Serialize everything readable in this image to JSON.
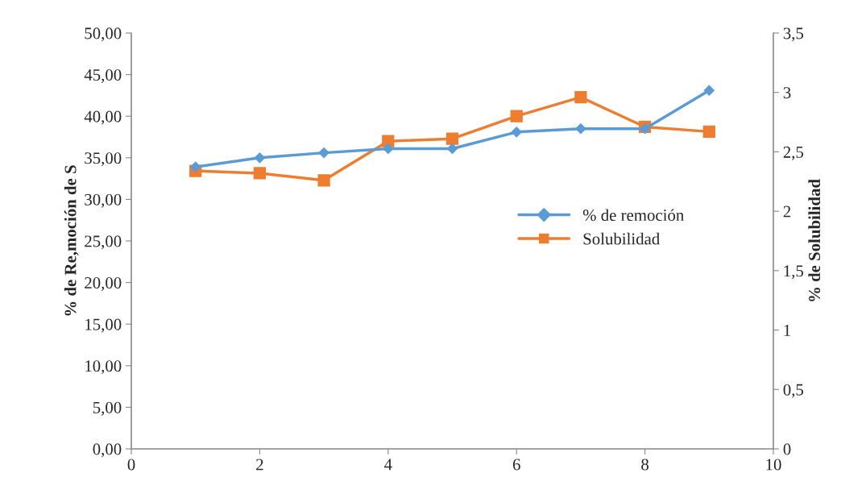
{
  "chart_data": {
    "type": "line",
    "ylabel": "% de Re,moción de S",
    "y2label": "% de Solubilidad",
    "x": [
      1,
      2,
      3,
      4,
      5,
      6,
      7,
      8,
      9
    ],
    "series": [
      {
        "name": "% de remoción",
        "color": "#5b9bd5",
        "marker": "diamond",
        "values": [
          33.9,
          35.0,
          35.6,
          36.1,
          36.1,
          38.1,
          38.5,
          38.5,
          43.1
        ]
      },
      {
        "name": "Solubilidad",
        "color": "#ed7d31",
        "marker": "square",
        "axis": "y2",
        "values": [
          2.34,
          2.32,
          2.26,
          2.59,
          2.61,
          2.8,
          2.96,
          2.71,
          2.67
        ]
      }
    ],
    "xlim": [
      0,
      10
    ],
    "xticks": [
      0,
      2,
      4,
      6,
      8,
      10
    ],
    "ylim": [
      0,
      50
    ],
    "yticks": [
      {
        "value": 0,
        "label": "0,00"
      },
      {
        "value": 5,
        "label": "5,00"
      },
      {
        "value": 10,
        "label": "10,00"
      },
      {
        "value": 15,
        "label": "15,00"
      },
      {
        "value": 20,
        "label": "20,00"
      },
      {
        "value": 25,
        "label": "25,00"
      },
      {
        "value": 30,
        "label": "30,00"
      },
      {
        "value": 35,
        "label": "35,00"
      },
      {
        "value": 40,
        "label": "40,00"
      },
      {
        "value": 45,
        "label": "45,00"
      },
      {
        "value": 50,
        "label": "50,00"
      }
    ],
    "y2lim": [
      0,
      3.5
    ],
    "y2ticks": [
      0,
      {
        "value": 0.5,
        "label": "0,5"
      },
      1,
      {
        "value": 1.5,
        "label": "1,5"
      },
      2,
      {
        "value": 2.5,
        "label": "2,5"
      },
      3,
      {
        "value": 3.5,
        "label": "3,5"
      }
    ],
    "legend": "right",
    "grid": false,
    "line_style": "solid"
  }
}
